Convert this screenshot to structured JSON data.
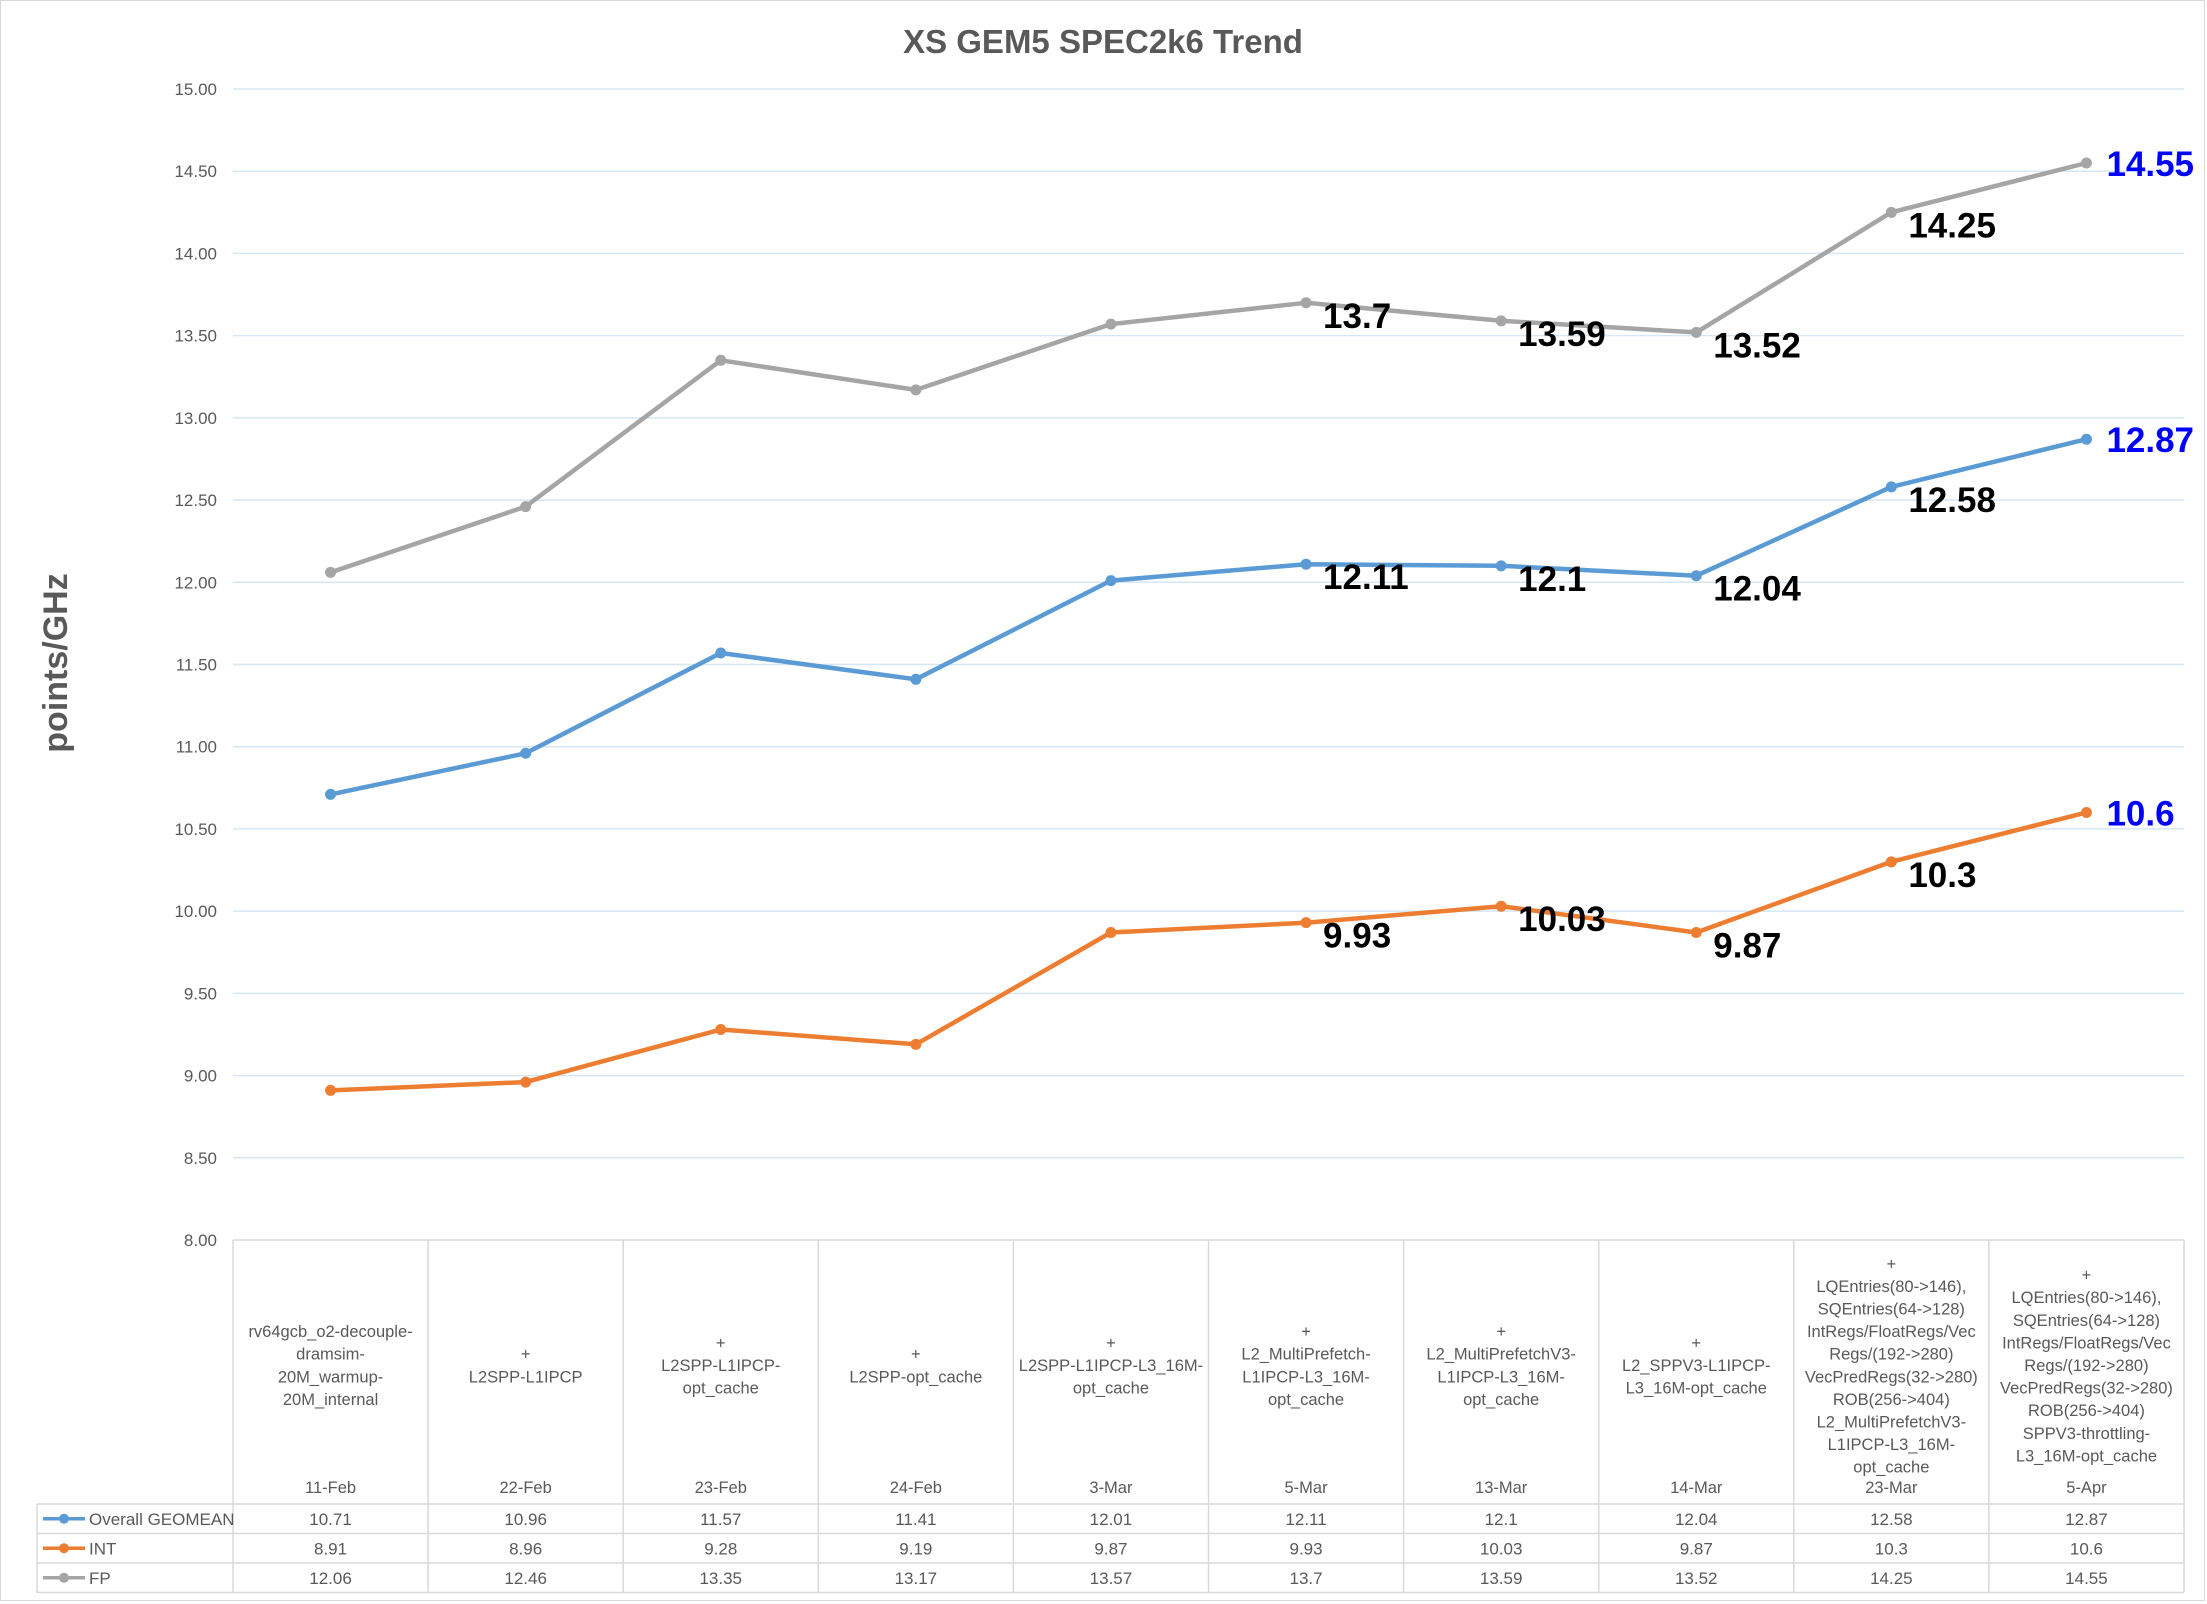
{
  "chart_data": {
    "type": "line",
    "title": "XS GEM5 SPEC2k6 Trend",
    "ylabel": "points/GHz",
    "ylim": [
      8.0,
      15.0
    ],
    "ytick_step": 0.5,
    "yticks": [
      "8.00",
      "8.50",
      "9.00",
      "9.50",
      "10.00",
      "10.50",
      "11.00",
      "11.50",
      "12.00",
      "12.50",
      "13.00",
      "13.50",
      "14.00",
      "14.50",
      "15.00"
    ],
    "grid": true,
    "legend": "data-table",
    "categories": [
      {
        "desc": [
          "rv64gcb_o2-decouple-",
          "dramsim-",
          "20M_warmup-",
          "20M_internal"
        ],
        "date": "11-Feb"
      },
      {
        "desc": [
          "+",
          "L2SPP-L1IPCP"
        ],
        "date": "22-Feb"
      },
      {
        "desc": [
          "+",
          "L2SPP-L1IPCP-",
          "opt_cache"
        ],
        "date": "23-Feb"
      },
      {
        "desc": [
          "+",
          "L2SPP-opt_cache"
        ],
        "date": "24-Feb"
      },
      {
        "desc": [
          "+",
          "L2SPP-L1IPCP-L3_16M-",
          "opt_cache"
        ],
        "date": "3-Mar"
      },
      {
        "desc": [
          "+",
          "L2_MultiPrefetch-",
          "L1IPCP-L3_16M-",
          "opt_cache"
        ],
        "date": "5-Mar"
      },
      {
        "desc": [
          "+",
          "L2_MultiPrefetchV3-",
          "L1IPCP-L3_16M-",
          "opt_cache"
        ],
        "date": "13-Mar"
      },
      {
        "desc": [
          "+",
          "L2_SPPV3-L1IPCP-",
          "L3_16M-opt_cache"
        ],
        "date": "14-Mar"
      },
      {
        "desc": [
          "+",
          "LQEntries(80->146),",
          "SQEntries(64->128)",
          "IntRegs/FloatRegs/Vec",
          "Regs/(192->280)",
          "VecPredRegs(32->280)",
          "ROB(256->404)",
          "L2_MultiPrefetchV3-",
          "L1IPCP-L3_16M-",
          "opt_cache"
        ],
        "date": "23-Mar"
      },
      {
        "desc": [
          "+",
          "LQEntries(80->146),",
          "SQEntries(64->128)",
          "IntRegs/FloatRegs/Vec",
          "Regs/(192->280)",
          "VecPredRegs(32->280)",
          "ROB(256->404)",
          "SPPV3-throttling-",
          "L3_16M-opt_cache"
        ],
        "date": "5-Apr"
      }
    ],
    "series": [
      {
        "name": "Overall GEOMEAN",
        "color": "#5b9bd5",
        "values": [
          10.71,
          10.96,
          11.57,
          11.41,
          12.01,
          12.11,
          12.1,
          12.04,
          12.58,
          12.87
        ],
        "cells": [
          "10.71",
          "10.96",
          "11.57",
          "11.41",
          "12.01",
          "12.11",
          "12.1",
          "12.04",
          "12.58",
          "12.87"
        ],
        "labeled_points": [
          5,
          6,
          7,
          8,
          9
        ],
        "point_labels": [
          "",
          "",
          "",
          "",
          "",
          "12.11",
          "12.1",
          "12.04",
          "12.58",
          "12.87"
        ]
      },
      {
        "name": "INT",
        "color": "#ed7d31",
        "values": [
          8.91,
          8.96,
          9.28,
          9.19,
          9.87,
          9.93,
          10.03,
          9.87,
          10.3,
          10.6
        ],
        "cells": [
          "8.91",
          "8.96",
          "9.28",
          "9.19",
          "9.87",
          "9.93",
          "10.03",
          "9.87",
          "10.3",
          "10.6"
        ],
        "labeled_points": [
          5,
          6,
          7,
          8,
          9
        ],
        "point_labels": [
          "",
          "",
          "",
          "",
          "",
          "9.93",
          "10.03",
          "9.87",
          "10.3",
          "10.6"
        ]
      },
      {
        "name": "FP",
        "color": "#a5a5a5",
        "values": [
          12.06,
          12.46,
          13.35,
          13.17,
          13.57,
          13.7,
          13.59,
          13.52,
          14.25,
          14.55
        ],
        "cells": [
          "12.06",
          "12.46",
          "13.35",
          "13.17",
          "13.57",
          "13.7",
          "13.59",
          "13.52",
          "14.25",
          "14.55"
        ],
        "labeled_points": [
          5,
          6,
          7,
          8,
          9
        ],
        "point_labels": [
          "",
          "",
          "",
          "",
          "",
          "13.7",
          "13.59",
          "13.52",
          "14.25",
          "14.55"
        ]
      }
    ],
    "label_colors": {
      "normal": "#000000",
      "latest": "#0000ff"
    },
    "gridline_color": "#d6e6f4",
    "table_border_color": "#d9d9d9"
  }
}
